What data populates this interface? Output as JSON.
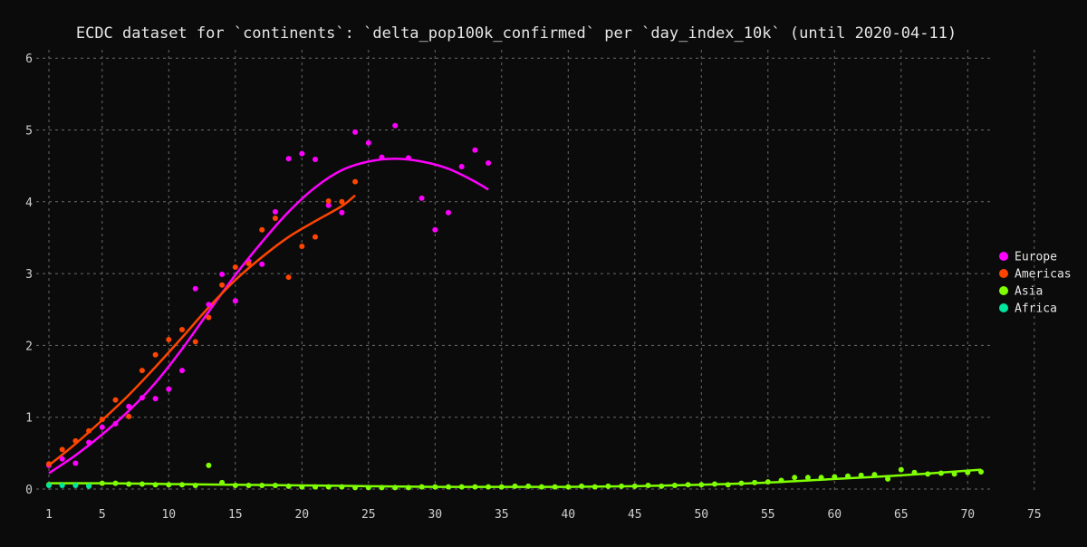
{
  "chart_data": {
    "type": "scatter",
    "title": "ECDC dataset for `continents`: `delta_pop100k_confirmed` per `day_index_10k` (until 2020-04-11)",
    "xlabel": "",
    "ylabel": "",
    "xlim": [
      0,
      76
    ],
    "ylim": [
      -0.08,
      6.2
    ],
    "x_ticks": [
      1,
      5,
      10,
      15,
      20,
      25,
      30,
      35,
      40,
      45,
      50,
      55,
      60,
      65,
      70,
      75
    ],
    "y_ticks": [
      0,
      1,
      2,
      3,
      4,
      5,
      6
    ],
    "grid": true,
    "legend_position": "right",
    "series": [
      {
        "name": "Europe",
        "color": "#ff00ff",
        "points": [
          [
            1,
            0.33
          ],
          [
            2,
            0.42
          ],
          [
            3,
            0.36
          ],
          [
            4,
            0.65
          ],
          [
            5,
            0.86
          ],
          [
            6,
            0.91
          ],
          [
            7,
            1.15
          ],
          [
            8,
            1.27
          ],
          [
            9,
            1.26
          ],
          [
            10,
            1.39
          ],
          [
            11,
            1.65
          ],
          [
            12,
            2.79
          ],
          [
            13,
            2.57
          ],
          [
            14,
            2.99
          ],
          [
            15,
            2.62
          ],
          [
            16,
            3.17
          ],
          [
            17,
            3.13
          ],
          [
            18,
            3.86
          ],
          [
            19,
            4.6
          ],
          [
            20,
            4.67
          ],
          [
            21,
            4.59
          ],
          [
            22,
            3.95
          ],
          [
            23,
            3.85
          ],
          [
            24,
            4.97
          ],
          [
            25,
            4.82
          ],
          [
            26,
            4.62
          ],
          [
            27,
            5.06
          ],
          [
            28,
            4.61
          ],
          [
            29,
            4.05
          ],
          [
            30,
            3.61
          ],
          [
            31,
            3.85
          ],
          [
            32,
            4.49
          ],
          [
            33,
            4.72
          ],
          [
            34,
            4.54
          ]
        ],
        "fit": [
          [
            1,
            0.22
          ],
          [
            3,
            0.47
          ],
          [
            5,
            0.76
          ],
          [
            7,
            1.09
          ],
          [
            9,
            1.48
          ],
          [
            11,
            1.95
          ],
          [
            13,
            2.47
          ],
          [
            15,
            2.98
          ],
          [
            17,
            3.44
          ],
          [
            19,
            3.86
          ],
          [
            21,
            4.2
          ],
          [
            23,
            4.44
          ],
          [
            25,
            4.56
          ],
          [
            27,
            4.6
          ],
          [
            29,
            4.56
          ],
          [
            31,
            4.46
          ],
          [
            33,
            4.28
          ],
          [
            34,
            4.17
          ]
        ]
      },
      {
        "name": "Americas",
        "color": "#ff4500",
        "points": [
          [
            1,
            0.35
          ],
          [
            2,
            0.55
          ],
          [
            3,
            0.67
          ],
          [
            4,
            0.81
          ],
          [
            5,
            0.97
          ],
          [
            6,
            1.24
          ],
          [
            7,
            1.01
          ],
          [
            8,
            1.65
          ],
          [
            9,
            1.87
          ],
          [
            10,
            2.08
          ],
          [
            11,
            2.22
          ],
          [
            12,
            2.05
          ],
          [
            13,
            2.39
          ],
          [
            14,
            2.84
          ],
          [
            15,
            3.09
          ],
          [
            16,
            3.14
          ],
          [
            17,
            3.61
          ],
          [
            18,
            3.77
          ],
          [
            19,
            2.95
          ],
          [
            20,
            3.38
          ],
          [
            21,
            3.51
          ],
          [
            22,
            4.01
          ],
          [
            23,
            4.0
          ],
          [
            24,
            4.28
          ]
        ],
        "fit": [
          [
            1,
            0.33
          ],
          [
            3,
            0.63
          ],
          [
            5,
            0.96
          ],
          [
            7,
            1.31
          ],
          [
            9,
            1.7
          ],
          [
            11,
            2.11
          ],
          [
            13,
            2.53
          ],
          [
            15,
            2.91
          ],
          [
            17,
            3.23
          ],
          [
            19,
            3.51
          ],
          [
            21,
            3.73
          ],
          [
            23,
            3.94
          ],
          [
            24,
            4.09
          ]
        ]
      },
      {
        "name": "Asia",
        "color": "#7fff00",
        "points": [
          [
            1,
            0.06
          ],
          [
            2,
            0.06
          ],
          [
            3,
            0.06
          ],
          [
            4,
            0.05
          ],
          [
            5,
            0.08
          ],
          [
            6,
            0.08
          ],
          [
            7,
            0.07
          ],
          [
            8,
            0.07
          ],
          [
            9,
            0.06
          ],
          [
            10,
            0.06
          ],
          [
            11,
            0.06
          ],
          [
            12,
            0.05
          ],
          [
            13,
            0.33
          ],
          [
            14,
            0.09
          ],
          [
            15,
            0.05
          ],
          [
            16,
            0.05
          ],
          [
            17,
            0.05
          ],
          [
            18,
            0.05
          ],
          [
            19,
            0.04
          ],
          [
            20,
            0.03
          ],
          [
            21,
            0.03
          ],
          [
            22,
            0.03
          ],
          [
            23,
            0.03
          ],
          [
            24,
            0.02
          ],
          [
            25,
            0.02
          ],
          [
            26,
            0.02
          ],
          [
            27,
            0.02
          ],
          [
            28,
            0.02
          ],
          [
            29,
            0.03
          ],
          [
            30,
            0.03
          ],
          [
            31,
            0.03
          ],
          [
            32,
            0.03
          ],
          [
            33,
            0.03
          ],
          [
            34,
            0.03
          ],
          [
            35,
            0.03
          ],
          [
            36,
            0.04
          ],
          [
            37,
            0.04
          ],
          [
            38,
            0.03
          ],
          [
            39,
            0.03
          ],
          [
            40,
            0.03
          ],
          [
            41,
            0.04
          ],
          [
            42,
            0.03
          ],
          [
            43,
            0.04
          ],
          [
            44,
            0.04
          ],
          [
            45,
            0.04
          ],
          [
            46,
            0.05
          ],
          [
            47,
            0.04
          ],
          [
            48,
            0.05
          ],
          [
            49,
            0.06
          ],
          [
            50,
            0.06
          ],
          [
            51,
            0.07
          ],
          [
            52,
            0.06
          ],
          [
            53,
            0.08
          ],
          [
            54,
            0.09
          ],
          [
            55,
            0.1
          ],
          [
            56,
            0.12
          ],
          [
            57,
            0.16
          ],
          [
            58,
            0.16
          ],
          [
            59,
            0.16
          ],
          [
            60,
            0.17
          ],
          [
            61,
            0.18
          ],
          [
            62,
            0.19
          ],
          [
            63,
            0.2
          ],
          [
            64,
            0.14
          ],
          [
            65,
            0.27
          ],
          [
            66,
            0.23
          ],
          [
            67,
            0.21
          ],
          [
            68,
            0.22
          ],
          [
            69,
            0.21
          ],
          [
            70,
            0.23
          ],
          [
            71,
            0.24
          ]
        ],
        "fit": [
          [
            1,
            0.08
          ],
          [
            5,
            0.08
          ],
          [
            10,
            0.07
          ],
          [
            15,
            0.06
          ],
          [
            20,
            0.05
          ],
          [
            25,
            0.04
          ],
          [
            30,
            0.03
          ],
          [
            35,
            0.03
          ],
          [
            40,
            0.03
          ],
          [
            45,
            0.04
          ],
          [
            50,
            0.06
          ],
          [
            55,
            0.09
          ],
          [
            60,
            0.14
          ],
          [
            65,
            0.19
          ],
          [
            71,
            0.27
          ]
        ]
      },
      {
        "name": "Africa",
        "color": "#00e5a0",
        "points": [
          [
            1,
            0.05
          ],
          [
            2,
            0.05
          ],
          [
            3,
            0.05
          ],
          [
            4,
            0.04
          ]
        ],
        "fit": []
      }
    ]
  }
}
